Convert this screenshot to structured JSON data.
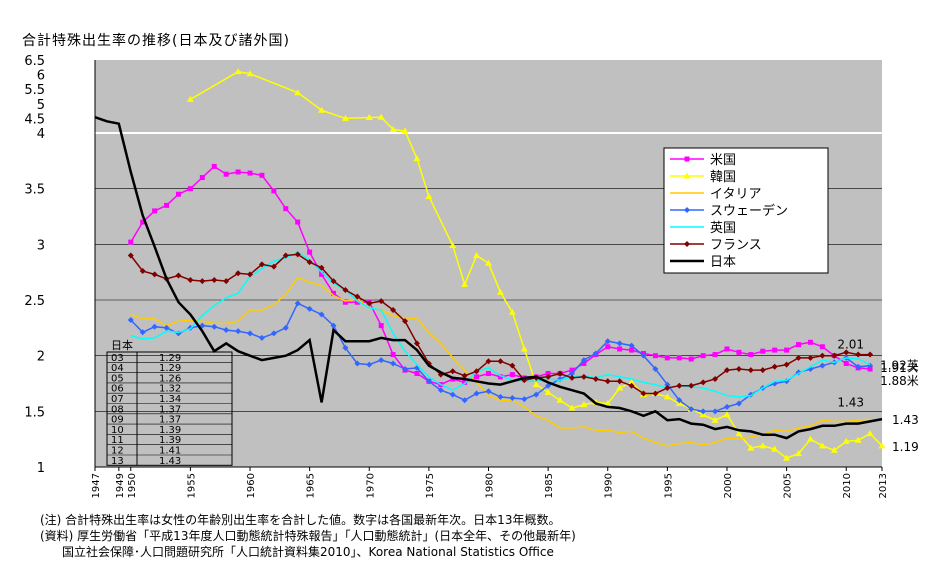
{
  "chart_data": {
    "type": "line",
    "title": "合計特殊出生率の推移(日本及び諸外国)",
    "y_ticks_lower": [
      "1",
      "1.5",
      "2",
      "2.5",
      "3",
      "3.5",
      "4"
    ],
    "y_ticks_upper": [
      "4.5",
      "5",
      "5.5",
      "6",
      "6.5"
    ],
    "x_ticks": [
      "1947",
      "1949",
      "1950",
      "1955",
      "1960",
      "1965",
      "1970",
      "1975",
      "1980",
      "1985",
      "1990",
      "1995",
      "2000",
      "2005",
      "2010",
      "2013"
    ],
    "ylim_lower": [
      1,
      4
    ],
    "ylim_upper": [
      4,
      6.5
    ],
    "grid": true,
    "legend_placement": "right",
    "series": [
      {
        "name": "米国",
        "color": "#ff00ff",
        "marker": "square",
        "x": [
          1950,
          1951,
          1952,
          1953,
          1954,
          1955,
          1956,
          1957,
          1958,
          1959,
          1960,
          1961,
          1962,
          1963,
          1964,
          1965,
          1966,
          1967,
          1968,
          1969,
          1970,
          1971,
          1972,
          1973,
          1974,
          1975,
          1976,
          1977,
          1978,
          1979,
          1980,
          1981,
          1982,
          1983,
          1984,
          1985,
          1986,
          1987,
          1988,
          1989,
          1990,
          1991,
          1992,
          1993,
          1994,
          1995,
          1996,
          1997,
          1998,
          1999,
          2000,
          2001,
          2002,
          2003,
          2004,
          2005,
          2006,
          2007,
          2008,
          2009,
          2010,
          2011,
          2012
        ],
        "y": [
          3.02,
          3.2,
          3.3,
          3.35,
          3.45,
          3.5,
          3.6,
          3.7,
          3.63,
          3.65,
          3.64,
          3.62,
          3.48,
          3.32,
          3.2,
          2.93,
          2.73,
          2.56,
          2.48,
          2.48,
          2.48,
          2.27,
          2.01,
          1.87,
          1.84,
          1.77,
          1.74,
          1.79,
          1.76,
          1.81,
          1.84,
          1.81,
          1.83,
          1.8,
          1.81,
          1.84,
          1.84,
          1.87,
          1.93,
          2.01,
          2.08,
          2.06,
          2.05,
          2.02,
          2.0,
          1.98,
          1.98,
          1.97,
          2.0,
          2.01,
          2.06,
          2.03,
          2.01,
          2.04,
          2.05,
          2.05,
          2.1,
          2.12,
          2.08,
          2.0,
          1.93,
          1.89,
          1.88
        ]
      },
      {
        "name": "韓国",
        "color": "#ffff00",
        "marker": "triangle",
        "x": [
          1955,
          1959,
          1960,
          1964,
          1966,
          1968,
          1970,
          1971,
          1972,
          1973,
          1974,
          1975,
          1977,
          1978,
          1979,
          1980,
          1981,
          1982,
          1983,
          1984,
          1985,
          1986,
          1987,
          1988,
          1989,
          1990,
          1991,
          1992,
          1993,
          1994,
          1995,
          1996,
          1997,
          1998,
          1999,
          2000,
          2001,
          2002,
          2003,
          2004,
          2005,
          2006,
          2007,
          2008,
          2009,
          2010,
          2011,
          2012,
          2013
        ],
        "y": [
          5.15,
          6.1,
          6.03,
          5.38,
          4.78,
          4.5,
          4.53,
          4.54,
          4.12,
          4.07,
          3.77,
          3.43,
          2.99,
          2.64,
          2.9,
          2.83,
          2.57,
          2.39,
          2.06,
          1.74,
          1.67,
          1.6,
          1.53,
          1.56,
          1.58,
          1.57,
          1.71,
          1.76,
          1.65,
          1.66,
          1.63,
          1.57,
          1.52,
          1.47,
          1.42,
          1.47,
          1.3,
          1.17,
          1.19,
          1.16,
          1.08,
          1.12,
          1.25,
          1.19,
          1.15,
          1.23,
          1.24,
          1.3,
          1.19
        ]
      },
      {
        "name": "イタリア",
        "color": "#ffcc00",
        "marker": "none",
        "x": [
          1950,
          1951,
          1952,
          1953,
          1954,
          1955,
          1956,
          1957,
          1958,
          1959,
          1960,
          1961,
          1962,
          1963,
          1964,
          1965,
          1966,
          1967,
          1968,
          1969,
          1970,
          1971,
          1972,
          1973,
          1974,
          1975,
          1976,
          1977,
          1978,
          1979,
          1980,
          1981,
          1982,
          1983,
          1984,
          1985,
          1986,
          1987,
          1988,
          1989,
          1990,
          1991,
          1992,
          1993,
          1994,
          1995,
          1996,
          1997,
          1998,
          1999,
          2000,
          2001,
          2002,
          2003,
          2004,
          2005,
          2006,
          2007,
          2008,
          2009,
          2010,
          2011,
          2012
        ],
        "y": [
          2.37,
          2.33,
          2.33,
          2.27,
          2.31,
          2.32,
          2.31,
          2.29,
          2.29,
          2.31,
          2.41,
          2.41,
          2.46,
          2.55,
          2.7,
          2.66,
          2.63,
          2.54,
          2.49,
          2.51,
          2.43,
          2.41,
          2.36,
          2.34,
          2.33,
          2.21,
          2.11,
          1.98,
          1.87,
          1.76,
          1.64,
          1.6,
          1.6,
          1.54,
          1.46,
          1.42,
          1.35,
          1.35,
          1.36,
          1.33,
          1.33,
          1.31,
          1.32,
          1.26,
          1.22,
          1.19,
          1.21,
          1.22,
          1.2,
          1.22,
          1.26,
          1.25,
          1.27,
          1.29,
          1.33,
          1.32,
          1.35,
          1.37,
          1.42,
          1.41,
          1.41,
          1.42,
          1.43
        ]
      },
      {
        "name": "スウェーデン",
        "color": "#3366ff",
        "marker": "diamond",
        "x": [
          1950,
          1951,
          1952,
          1953,
          1954,
          1955,
          1956,
          1957,
          1958,
          1959,
          1960,
          1961,
          1962,
          1963,
          1964,
          1965,
          1966,
          1967,
          1968,
          1969,
          1970,
          1971,
          1972,
          1973,
          1974,
          1975,
          1976,
          1977,
          1978,
          1979,
          1980,
          1981,
          1982,
          1983,
          1984,
          1985,
          1986,
          1987,
          1988,
          1989,
          1990,
          1991,
          1992,
          1993,
          1994,
          1995,
          1996,
          1997,
          1998,
          1999,
          2000,
          2001,
          2002,
          2003,
          2004,
          2005,
          2006,
          2007,
          2008,
          2009,
          2010,
          2011,
          2012
        ],
        "y": [
          2.32,
          2.21,
          2.26,
          2.25,
          2.2,
          2.25,
          2.27,
          2.26,
          2.23,
          2.22,
          2.2,
          2.16,
          2.2,
          2.25,
          2.47,
          2.42,
          2.37,
          2.27,
          2.07,
          1.93,
          1.92,
          1.96,
          1.93,
          1.88,
          1.89,
          1.77,
          1.69,
          1.65,
          1.6,
          1.66,
          1.68,
          1.63,
          1.62,
          1.61,
          1.65,
          1.73,
          1.79,
          1.84,
          1.96,
          2.02,
          2.13,
          2.11,
          2.09,
          2.0,
          1.88,
          1.74,
          1.6,
          1.52,
          1.5,
          1.5,
          1.54,
          1.57,
          1.65,
          1.71,
          1.75,
          1.77,
          1.85,
          1.88,
          1.91,
          1.94,
          1.98,
          1.9,
          1.91
        ]
      },
      {
        "name": "英国",
        "color": "#00ffff",
        "marker": "none",
        "x": [
          1950,
          1951,
          1952,
          1953,
          1954,
          1955,
          1956,
          1957,
          1958,
          1959,
          1960,
          1961,
          1962,
          1963,
          1964,
          1965,
          1966,
          1967,
          1968,
          1969,
          1970,
          1971,
          1972,
          1973,
          1974,
          1975,
          1976,
          1977,
          1978,
          1979,
          1980,
          1981,
          1982,
          1983,
          1984,
          1985,
          1986,
          1987,
          1988,
          1989,
          1990,
          1991,
          1992,
          1993,
          1994,
          1995,
          1996,
          1997,
          1998,
          1999,
          2000,
          2001,
          2002,
          2003,
          2004,
          2005,
          2006,
          2007,
          2008,
          2009,
          2010,
          2011,
          2012
        ],
        "y": [
          2.18,
          2.15,
          2.16,
          2.22,
          2.21,
          2.24,
          2.36,
          2.45,
          2.52,
          2.56,
          2.71,
          2.78,
          2.85,
          2.88,
          2.93,
          2.86,
          2.75,
          2.65,
          2.59,
          2.49,
          2.43,
          2.41,
          2.2,
          2.04,
          1.92,
          1.81,
          1.74,
          1.69,
          1.75,
          1.86,
          1.89,
          1.82,
          1.78,
          1.77,
          1.77,
          1.79,
          1.78,
          1.81,
          1.82,
          1.8,
          1.83,
          1.81,
          1.79,
          1.76,
          1.74,
          1.71,
          1.73,
          1.72,
          1.71,
          1.68,
          1.64,
          1.63,
          1.64,
          1.71,
          1.77,
          1.78,
          1.84,
          1.9,
          1.96,
          1.94,
          1.98,
          1.97,
          1.92
        ]
      },
      {
        "name": "フランス",
        "color": "#800000",
        "marker": "diamond",
        "x": [
          1950,
          1951,
          1952,
          1953,
          1954,
          1955,
          1956,
          1957,
          1958,
          1959,
          1960,
          1961,
          1962,
          1963,
          1964,
          1965,
          1966,
          1967,
          1968,
          1969,
          1970,
          1971,
          1972,
          1973,
          1974,
          1975,
          1976,
          1977,
          1978,
          1979,
          1980,
          1981,
          1982,
          1983,
          1984,
          1985,
          1986,
          1987,
          1988,
          1989,
          1990,
          1991,
          1992,
          1993,
          1994,
          1995,
          1996,
          1997,
          1998,
          1999,
          2000,
          2001,
          2002,
          2003,
          2004,
          2005,
          2006,
          2007,
          2008,
          2009,
          2010,
          2011,
          2012
        ],
        "y": [
          2.9,
          2.76,
          2.73,
          2.69,
          2.72,
          2.68,
          2.67,
          2.68,
          2.67,
          2.74,
          2.73,
          2.82,
          2.8,
          2.9,
          2.91,
          2.84,
          2.79,
          2.67,
          2.59,
          2.53,
          2.47,
          2.49,
          2.41,
          2.31,
          2.11,
          1.93,
          1.83,
          1.86,
          1.82,
          1.86,
          1.95,
          1.95,
          1.91,
          1.78,
          1.8,
          1.81,
          1.84,
          1.8,
          1.81,
          1.79,
          1.77,
          1.77,
          1.73,
          1.66,
          1.66,
          1.71,
          1.73,
          1.73,
          1.76,
          1.79,
          1.87,
          1.88,
          1.87,
          1.87,
          1.9,
          1.92,
          1.98,
          1.98,
          2.0,
          2.0,
          2.03,
          2.01,
          2.01
        ]
      },
      {
        "name": "日本",
        "color": "#000000",
        "marker": "none",
        "x": [
          1947,
          1948,
          1949,
          1950,
          1951,
          1952,
          1953,
          1954,
          1955,
          1956,
          1957,
          1958,
          1959,
          1960,
          1961,
          1962,
          1963,
          1964,
          1965,
          1966,
          1967,
          1968,
          1969,
          1970,
          1971,
          1972,
          1973,
          1974,
          1975,
          1976,
          1977,
          1978,
          1979,
          1980,
          1981,
          1982,
          1983,
          1984,
          1985,
          1986,
          1987,
          1988,
          1989,
          1990,
          1991,
          1992,
          1993,
          1994,
          1995,
          1996,
          1997,
          1998,
          1999,
          2000,
          2001,
          2002,
          2003,
          2004,
          2005,
          2006,
          2007,
          2008,
          2009,
          2010,
          2011,
          2012,
          2013
        ],
        "y": [
          4.54,
          4.4,
          4.32,
          3.65,
          3.26,
          2.98,
          2.69,
          2.48,
          2.37,
          2.22,
          2.04,
          2.11,
          2.04,
          2.0,
          1.96,
          1.98,
          2.0,
          2.05,
          2.14,
          1.58,
          2.23,
          2.13,
          2.13,
          2.13,
          2.16,
          2.14,
          2.14,
          2.05,
          1.91,
          1.85,
          1.8,
          1.79,
          1.77,
          1.75,
          1.74,
          1.77,
          1.8,
          1.81,
          1.76,
          1.72,
          1.69,
          1.66,
          1.57,
          1.54,
          1.53,
          1.5,
          1.46,
          1.5,
          1.42,
          1.43,
          1.39,
          1.38,
          1.34,
          1.36,
          1.33,
          1.32,
          1.29,
          1.29,
          1.26,
          1.32,
          1.34,
          1.37,
          1.37,
          1.39,
          1.39,
          1.41,
          1.43
        ]
      }
    ],
    "annotations": [
      {
        "text": "2.01",
        "x": 2012,
        "y": 2.01,
        "anchor": "above"
      },
      {
        "text": "1.92英",
        "x": 2012,
        "y": 1.92,
        "anchor": "right"
      },
      {
        "text": "1.91ス",
        "x": 2012,
        "y": 1.9,
        "anchor": "right"
      },
      {
        "text": "1.88米",
        "x": 2012,
        "y": 1.78,
        "anchor": "right"
      },
      {
        "text": "1.43",
        "x": 2012,
        "y": 1.49,
        "anchor": "above"
      },
      {
        "text": "1.43",
        "x": 2013,
        "y": 1.43,
        "anchor": "right"
      },
      {
        "text": "1.19",
        "x": 2013,
        "y": 1.19,
        "anchor": "right"
      }
    ],
    "inset_table": {
      "header": "日本",
      "rows": [
        [
          "03",
          "1.29"
        ],
        [
          "04",
          "1.29"
        ],
        [
          "05",
          "1.26"
        ],
        [
          "06",
          "1.32"
        ],
        [
          "07",
          "1.34"
        ],
        [
          "08",
          "1.37"
        ],
        [
          "09",
          "1.37"
        ],
        [
          "10",
          "1.39"
        ],
        [
          "11",
          "1.39"
        ],
        [
          "12",
          "1.41"
        ],
        [
          "13",
          "1.43"
        ]
      ]
    }
  },
  "notes": [
    "(注) 合計特殊出生率は女性の年齢別出生率を合計した値。数字は各国最新年次。日本13年概数。",
    "(資料) 厚生労働省「平成13年度人口動態統計特殊報告」「人口動態統計」(日本全年、その他最新年)",
    "国立社会保障･人口問題研究所「人口統計資料集2010」、Korea National Statistics Office"
  ]
}
